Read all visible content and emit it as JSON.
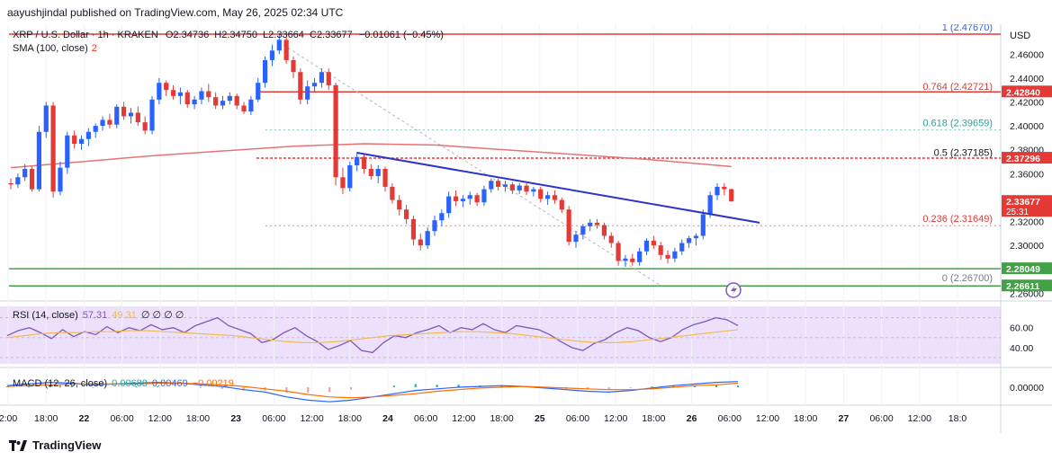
{
  "header": {
    "published_line": "aayushjindal published on TradingView.com, May 26, 2025 02:34 UTC"
  },
  "legend": {
    "symbol_line": "XRP / U.S. Dollar · 1h · KRAKEN",
    "o_label": "O",
    "o_value": "2.34736",
    "h_label": "H",
    "h_value": "2.34750",
    "l_label": "L",
    "l_value": "2.33664",
    "c_label": "C",
    "c_value": "2.33677",
    "change": "−0.01061 (−0.45%)",
    "sma_label": "SMA (100, close)",
    "sma_count": "2"
  },
  "price_axis": {
    "currency": "USD",
    "ticks": [
      "2.46000",
      "2.44000",
      "2.42000",
      "2.40000",
      "2.38000",
      "2.36000",
      "2.32000",
      "2.30000",
      "2.26000"
    ]
  },
  "price_tags": [
    {
      "value": "2.42840",
      "color": "#e53935"
    },
    {
      "value": "2.37296",
      "color": "#e53935"
    },
    {
      "value": "2.33677",
      "color": "#e53935",
      "sub": "25:31"
    },
    {
      "value": "2.28049",
      "color": "#43a047"
    },
    {
      "value": "2.26611",
      "color": "#43a047"
    }
  ],
  "fib_labels": [
    {
      "text": "1 (2.47670)",
      "price": 2.4767,
      "color": "#2962ff"
    },
    {
      "text": "0.764 (2.42721)",
      "price": 2.42721,
      "color": "#e53935"
    },
    {
      "text": "0.618 (2.39659)",
      "price": 2.39659,
      "color": "#26a69a"
    },
    {
      "text": "0.5 (2.37185)",
      "price": 2.37185,
      "color": "#131722"
    },
    {
      "text": "0.236 (2.31649)",
      "price": 2.31649,
      "color": "#e53935"
    },
    {
      "text": "0 (2.26700)",
      "price": 2.267,
      "color": "#787b86"
    }
  ],
  "rsi": {
    "label": "RSI (14, close)",
    "value": "57.31",
    "value2": "49.31",
    "dots": "∅ ∅ ∅ ∅",
    "ticks": [
      "60.00",
      "40.00"
    ]
  },
  "macd": {
    "label": "MACD (12, 26, close)",
    "v1": "0.00688",
    "v2": "0.00469",
    "v3": "−0.00219",
    "ticks": [
      "0.00000"
    ]
  },
  "time_axis": [
    "2:00",
    "18:00",
    "22",
    "06:00",
    "12:00",
    "18:00",
    "23",
    "06:00",
    "12:00",
    "18:00",
    "24",
    "06:00",
    "12:00",
    "18:00",
    "25",
    "06:00",
    "12:00",
    "18:00",
    "26",
    "06:00",
    "12:00",
    "18:00",
    "27",
    "06:00",
    "12:00",
    "18:0"
  ],
  "footer": {
    "brand": "TradingView"
  },
  "chart_data": {
    "type": "candlestick",
    "title": "XRP / U.S. Dollar · 1h · KRAKEN",
    "ylabel": "USD",
    "ylim": [
      2.255,
      2.485
    ],
    "candles": [
      [
        2.352,
        2.356,
        2.347,
        2.351
      ],
      [
        2.351,
        2.36,
        2.348,
        2.357
      ],
      [
        2.357,
        2.368,
        2.354,
        2.364
      ],
      [
        2.364,
        2.366,
        2.345,
        2.347
      ],
      [
        2.347,
        2.4,
        2.345,
        2.395
      ],
      [
        2.395,
        2.42,
        2.39,
        2.417
      ],
      [
        2.417,
        2.42,
        2.34,
        2.345
      ],
      [
        2.345,
        2.37,
        2.342,
        2.365
      ],
      [
        2.365,
        2.395,
        2.36,
        2.392
      ],
      [
        2.392,
        2.396,
        2.381,
        2.385
      ],
      [
        2.385,
        2.392,
        2.38,
        2.389
      ],
      [
        2.389,
        2.398,
        2.383,
        2.395
      ],
      [
        2.395,
        2.402,
        2.39,
        2.4
      ],
      [
        2.4,
        2.408,
        2.396,
        2.405
      ],
      [
        2.405,
        2.41,
        2.398,
        2.401
      ],
      [
        2.401,
        2.418,
        2.398,
        2.416
      ],
      [
        2.416,
        2.42,
        2.405,
        2.408
      ],
      [
        2.408,
        2.415,
        2.402,
        2.411
      ],
      [
        2.411,
        2.416,
        2.4,
        2.403
      ],
      [
        2.403,
        2.408,
        2.393,
        2.396
      ],
      [
        2.396,
        2.425,
        2.393,
        2.422
      ],
      [
        2.422,
        2.44,
        2.418,
        2.436
      ],
      [
        2.436,
        2.438,
        2.425,
        2.43
      ],
      [
        2.43,
        2.434,
        2.422,
        2.425
      ],
      [
        2.425,
        2.432,
        2.418,
        2.428
      ],
      [
        2.428,
        2.43,
        2.415,
        2.418
      ],
      [
        2.418,
        2.425,
        2.414,
        2.422
      ],
      [
        2.422,
        2.432,
        2.418,
        2.429
      ],
      [
        2.429,
        2.435,
        2.42,
        2.424
      ],
      [
        2.424,
        2.428,
        2.414,
        2.417
      ],
      [
        2.417,
        2.425,
        2.414,
        2.421
      ],
      [
        2.421,
        2.428,
        2.418,
        2.425
      ],
      [
        2.425,
        2.427,
        2.414,
        2.417
      ],
      [
        2.417,
        2.42,
        2.41,
        2.412
      ],
      [
        2.412,
        2.425,
        2.409,
        2.422
      ],
      [
        2.422,
        2.44,
        2.42,
        2.436
      ],
      [
        2.436,
        2.458,
        2.432,
        2.455
      ],
      [
        2.455,
        2.468,
        2.45,
        2.463
      ],
      [
        2.463,
        2.4767,
        2.46,
        2.472
      ],
      [
        2.472,
        2.474,
        2.452,
        2.455
      ],
      [
        2.455,
        2.458,
        2.44,
        2.445
      ],
      [
        2.445,
        2.448,
        2.418,
        2.422
      ],
      [
        2.422,
        2.438,
        2.418,
        2.433
      ],
      [
        2.433,
        2.44,
        2.428,
        2.436
      ],
      [
        2.436,
        2.448,
        2.432,
        2.445
      ],
      [
        2.445,
        2.448,
        2.43,
        2.434
      ],
      [
        2.434,
        2.436,
        2.35,
        2.357
      ],
      [
        2.357,
        2.365,
        2.343,
        2.348
      ],
      [
        2.348,
        2.37,
        2.345,
        2.367
      ],
      [
        2.367,
        2.378,
        2.362,
        2.374
      ],
      [
        2.374,
        2.376,
        2.36,
        2.364
      ],
      [
        2.364,
        2.368,
        2.355,
        2.358
      ],
      [
        2.358,
        2.367,
        2.352,
        2.364
      ],
      [
        2.364,
        2.366,
        2.345,
        2.349
      ],
      [
        2.349,
        2.352,
        2.335,
        2.338
      ],
      [
        2.338,
        2.342,
        2.325,
        2.33
      ],
      [
        2.33,
        2.334,
        2.318,
        2.322
      ],
      [
        2.322,
        2.325,
        2.3,
        2.305
      ],
      [
        2.305,
        2.31,
        2.296,
        2.3
      ],
      [
        2.3,
        2.315,
        2.297,
        2.312
      ],
      [
        2.312,
        2.325,
        2.308,
        2.321
      ],
      [
        2.321,
        2.33,
        2.316,
        2.327
      ],
      [
        2.327,
        2.345,
        2.323,
        2.341
      ],
      [
        2.341,
        2.346,
        2.333,
        2.337
      ],
      [
        2.337,
        2.342,
        2.332,
        2.339
      ],
      [
        2.339,
        2.345,
        2.334,
        2.342
      ],
      [
        2.342,
        2.344,
        2.333,
        2.336
      ],
      [
        2.336,
        2.35,
        2.333,
        2.347
      ],
      [
        2.347,
        2.356,
        2.344,
        2.354
      ],
      [
        2.354,
        2.356,
        2.346,
        2.349
      ],
      [
        2.349,
        2.354,
        2.345,
        2.351
      ],
      [
        2.351,
        2.353,
        2.343,
        2.346
      ],
      [
        2.346,
        2.352,
        2.343,
        2.35
      ],
      [
        2.35,
        2.352,
        2.342,
        2.345
      ],
      [
        2.345,
        2.349,
        2.341,
        2.347
      ],
      [
        2.347,
        2.349,
        2.336,
        2.339
      ],
      [
        2.339,
        2.345,
        2.334,
        2.342
      ],
      [
        2.342,
        2.346,
        2.335,
        2.338
      ],
      [
        2.338,
        2.34,
        2.327,
        2.33
      ],
      [
        2.33,
        2.333,
        2.3,
        2.303
      ],
      [
        2.303,
        2.312,
        2.298,
        2.309
      ],
      [
        2.309,
        2.318,
        2.305,
        2.316
      ],
      [
        2.316,
        2.322,
        2.312,
        2.319
      ],
      [
        2.319,
        2.322,
        2.314,
        2.317
      ],
      [
        2.317,
        2.319,
        2.305,
        2.308
      ],
      [
        2.308,
        2.311,
        2.298,
        2.302
      ],
      [
        2.302,
        2.304,
        2.283,
        2.287
      ],
      [
        2.287,
        2.292,
        2.282,
        2.289
      ],
      [
        2.289,
        2.293,
        2.283,
        2.286
      ],
      [
        2.286,
        2.298,
        2.283,
        2.295
      ],
      [
        2.295,
        2.306,
        2.292,
        2.304
      ],
      [
        2.304,
        2.308,
        2.297,
        2.3
      ],
      [
        2.3,
        2.303,
        2.288,
        2.292
      ],
      [
        2.292,
        2.296,
        2.285,
        2.289
      ],
      [
        2.289,
        2.298,
        2.286,
        2.295
      ],
      [
        2.295,
        2.305,
        2.292,
        2.302
      ],
      [
        2.302,
        2.308,
        2.298,
        2.306
      ],
      [
        2.306,
        2.31,
        2.3,
        2.308
      ],
      [
        2.308,
        2.33,
        2.305,
        2.326
      ],
      [
        2.326,
        2.345,
        2.323,
        2.342
      ],
      [
        2.342,
        2.352,
        2.338,
        2.349
      ],
      [
        2.349,
        2.352,
        2.342,
        2.347
      ],
      [
        2.347,
        2.3475,
        2.3366,
        2.3368
      ]
    ],
    "sma100": [
      [
        0,
        2.365
      ],
      [
        20,
        2.375
      ],
      [
        40,
        2.383
      ],
      [
        50,
        2.385
      ],
      [
        60,
        2.384
      ],
      [
        70,
        2.38
      ],
      [
        80,
        2.376
      ],
      [
        90,
        2.372
      ],
      [
        102,
        2.366
      ]
    ],
    "horizontal_levels": [
      {
        "price": 2.4767,
        "color": "#e53935",
        "width": 1.5
      },
      {
        "price": 2.4284,
        "color": "#e53935",
        "width": 1.5
      },
      {
        "price": 2.37296,
        "color": "#e53935",
        "width": 1.5,
        "dashed": true
      },
      {
        "price": 2.28049,
        "color": "#43a047",
        "width": 1.5
      },
      {
        "price": 2.26611,
        "color": "#43a047",
        "width": 1.5
      }
    ],
    "trendline": {
      "from": [
        49,
        2.3775
      ],
      "to": [
        106,
        2.319
      ],
      "color": "#2e33c9"
    },
    "rsi_series": [
      52,
      57,
      60,
      55,
      49,
      58,
      51,
      56,
      53,
      61,
      55,
      60,
      57,
      63,
      58,
      60,
      55,
      62,
      66,
      70,
      62,
      58,
      54,
      45,
      48,
      55,
      60,
      52,
      46,
      38,
      42,
      47,
      37,
      35,
      45,
      52,
      50,
      55,
      58,
      62,
      55,
      60,
      58,
      64,
      58,
      55,
      62,
      60,
      58,
      53,
      46,
      40,
      37,
      44,
      48,
      55,
      60,
      57,
      50,
      46,
      50,
      58,
      63,
      66,
      70,
      68,
      62
    ],
    "rsi_signal": [
      50,
      52,
      54,
      55,
      55,
      56,
      56,
      57,
      57,
      56,
      55,
      54,
      53,
      52,
      50,
      48,
      46,
      45,
      45,
      46,
      48,
      50,
      52,
      53,
      54,
      55,
      56,
      56,
      55,
      54,
      52,
      50,
      48,
      46,
      45,
      45,
      46,
      48,
      50,
      52,
      54,
      56,
      58
    ],
    "macd_line": [
      0.002,
      0.004,
      0.006,
      0.005,
      0.003,
      0.004,
      0.005,
      0.006,
      0.005,
      0.003,
      0.001,
      -0.003,
      -0.006,
      -0.012,
      -0.016,
      -0.018,
      -0.016,
      -0.012,
      -0.008,
      -0.004,
      -0.002,
      0.0,
      0.001,
      0.002,
      0.001,
      -0.001,
      -0.003,
      -0.005,
      -0.006,
      -0.004,
      -0.001,
      0.002,
      0.004,
      0.006,
      0.007
    ],
    "macd_signal": [
      0.001,
      0.002,
      0.003,
      0.004,
      0.004,
      0.004,
      0.004,
      0.005,
      0.005,
      0.004,
      0.003,
      0.001,
      -0.002,
      -0.005,
      -0.009,
      -0.012,
      -0.013,
      -0.012,
      -0.01,
      -0.008,
      -0.005,
      -0.003,
      -0.001,
      0.0,
      0.001,
      0.0,
      -0.001,
      -0.002,
      -0.003,
      -0.003,
      -0.002,
      0.0,
      0.002,
      0.003,
      0.005
    ]
  }
}
